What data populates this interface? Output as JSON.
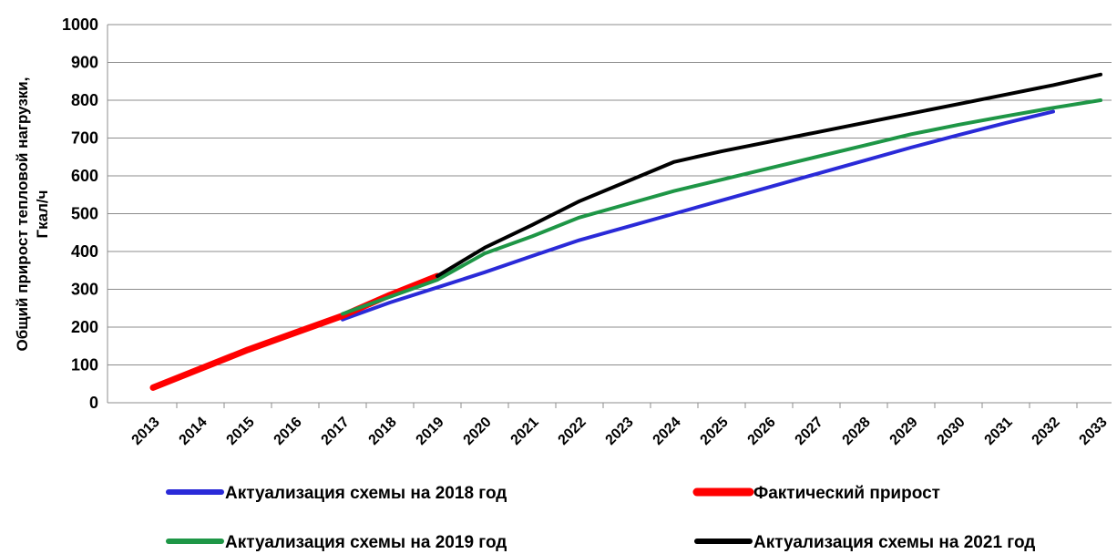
{
  "chart_data": {
    "type": "line",
    "ylabel": [
      "Общий прирост тепловой нагрузки,",
      "Гкал/ч"
    ],
    "categories": [
      "2013",
      "2014",
      "2015",
      "2016",
      "2017",
      "2018",
      "2019",
      "2020",
      "2021",
      "2022",
      "2023",
      "2024",
      "2025",
      "2026",
      "2027",
      "2028",
      "2029",
      "2030",
      "2031",
      "2032",
      "2033"
    ],
    "series": [
      {
        "name": "Актуализация схемы на 2018 год",
        "color": "#2a2ad8",
        "width": 4,
        "values": [
          null,
          null,
          null,
          null,
          220,
          265,
          305,
          345,
          388,
          430,
          465,
          500,
          535,
          570,
          605,
          640,
          675,
          708,
          740,
          770,
          null
        ]
      },
      {
        "name": "Фактический прирост",
        "color": "#ff0000",
        "width": 7,
        "values": [
          40,
          90,
          140,
          185,
          230,
          285,
          335,
          null,
          null,
          null,
          null,
          null,
          null,
          null,
          null,
          null,
          null,
          null,
          null,
          null,
          null
        ]
      },
      {
        "name": "Актуализация схемы на 2019 год",
        "color": "#1e9646",
        "width": 4,
        "values": [
          null,
          null,
          null,
          null,
          235,
          280,
          325,
          395,
          440,
          490,
          525,
          560,
          590,
          620,
          650,
          680,
          710,
          735,
          758,
          780,
          800
        ]
      },
      {
        "name": "Актуализация схемы на 2021 год",
        "color": "#000000",
        "width": 4,
        "values": [
          null,
          null,
          null,
          null,
          null,
          null,
          335,
          410,
          470,
          533,
          585,
          637,
          665,
          690,
          715,
          740,
          765,
          790,
          815,
          840,
          868
        ]
      }
    ],
    "ylim": [
      0,
      1000
    ],
    "yticks": [
      0,
      100,
      200,
      300,
      400,
      500,
      600,
      700,
      800,
      900,
      1000
    ],
    "grid": true
  }
}
